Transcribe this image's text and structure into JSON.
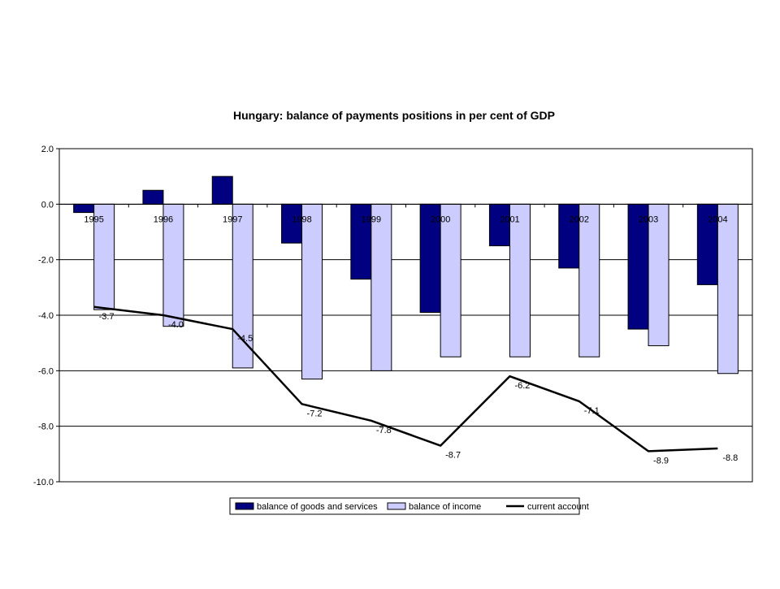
{
  "chart_data": {
    "type": "bar",
    "title": "Hungary: balance of payments positions in per cent of GDP",
    "xlabel": "",
    "ylabel": "",
    "categories": [
      "1995",
      "1996",
      "1997",
      "1998",
      "1999",
      "2000",
      "2001",
      "2002",
      "2003",
      "2004"
    ],
    "ylim": [
      -10.0,
      2.0
    ],
    "yticks": [
      "2.0",
      "0.0",
      "-2.0",
      "-4.0",
      "-6.0",
      "-8.0",
      "-10.0"
    ],
    "ytick_values": [
      2,
      0,
      -2,
      -4,
      -6,
      -8,
      -10
    ],
    "grid": true,
    "legend_position": "bottom",
    "series": [
      {
        "name": "balance of goods and services",
        "kind": "bar",
        "color": "#000080",
        "values": [
          -0.3,
          0.5,
          1.0,
          -1.4,
          -2.7,
          -3.9,
          -1.5,
          -2.3,
          -4.5,
          -2.9
        ]
      },
      {
        "name": "balance of income",
        "kind": "bar",
        "color": "#ccccff",
        "values": [
          -3.8,
          -4.4,
          -5.9,
          -6.3,
          -6.0,
          -5.5,
          -5.5,
          -5.5,
          -5.1,
          -6.1
        ]
      },
      {
        "name": "current account",
        "kind": "line",
        "color": "#000000",
        "values": [
          -3.7,
          -4.0,
          -4.5,
          -7.2,
          -7.8,
          -8.7,
          -6.2,
          -7.1,
          -8.9,
          -8.8
        ],
        "labels": [
          "-3.7",
          "-4.0",
          "-4.5",
          "-7.2",
          "-7.8",
          "-8.7",
          "-6.2",
          "-7.1",
          "-8.9",
          "-8.8"
        ]
      }
    ]
  }
}
